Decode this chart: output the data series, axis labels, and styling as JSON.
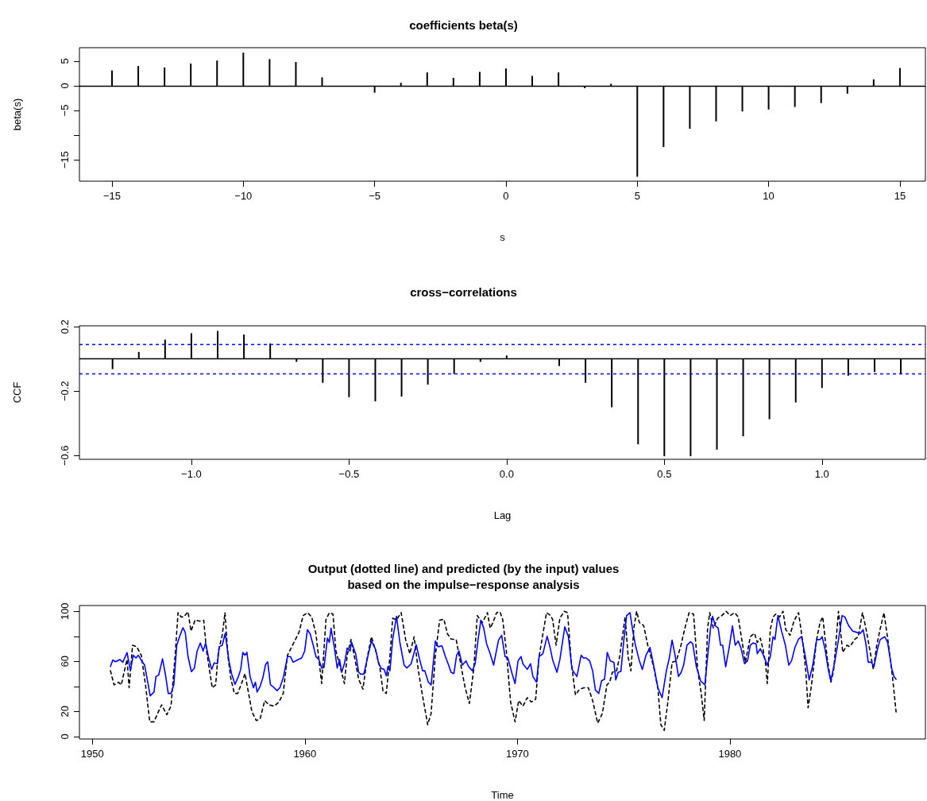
{
  "chart_data": [
    {
      "type": "bar",
      "title": "coefficients beta(s)",
      "xlabel": "s",
      "ylabel": "beta(s)",
      "x": [
        -15,
        -14,
        -13,
        -12,
        -11,
        -10,
        -9,
        -8,
        -7,
        -6,
        -5,
        -4,
        -3,
        -2,
        -1,
        0,
        1,
        2,
        3,
        4,
        5,
        6,
        7,
        8,
        9,
        10,
        11,
        12,
        13,
        14,
        15
      ],
      "series": [
        {
          "color": "#000000",
          "values": [
            3.1,
            4.0,
            3.7,
            4.5,
            5.1,
            6.7,
            5.4,
            4.8,
            1.7,
            null,
            -1.4,
            0.6,
            2.7,
            1.6,
            2.8,
            3.5,
            2.0,
            2.7,
            -0.5,
            0.4,
            -18.4,
            -12.4,
            -8.7,
            -7.2,
            -5.2,
            -4.8,
            -4.3,
            -3.5,
            -1.6,
            1.3,
            3.6
          ]
        }
      ],
      "xlim": [
        -16.24,
        15.97
      ],
      "xticks": [
        -15,
        -10,
        -5,
        0,
        5,
        10,
        15
      ],
      "ylim": [
        -19.3,
        7.7
      ],
      "yticks": [
        -15,
        {
          "value": -10,
          "label": null
        },
        -5,
        0,
        5
      ],
      "ref_lines": [
        {
          "axis": "y",
          "value": 0,
          "color": "#000000",
          "line_style": "solid"
        }
      ]
    },
    {
      "type": "bar",
      "title": "cross−correlations",
      "xlabel": "Lag",
      "ylabel": "CCF",
      "x": [
        -1.25,
        -1.1667,
        -1.0833,
        -1,
        -0.9167,
        -0.8333,
        -0.75,
        -0.6667,
        -0.5833,
        -0.5,
        -0.4167,
        -0.3333,
        -0.25,
        -0.1667,
        -0.0833,
        0,
        0.0833,
        0.1667,
        0.25,
        0.3333,
        0.4167,
        0.5,
        0.5833,
        0.6667,
        0.75,
        0.8333,
        0.9167,
        1,
        1.0833,
        1.1667,
        1.25
      ],
      "series": [
        {
          "color": "#000000",
          "values": [
            -0.063,
            0.044,
            0.12,
            0.16,
            0.174,
            0.152,
            0.096,
            -0.018,
            -0.148,
            -0.237,
            -0.263,
            -0.233,
            -0.159,
            -0.093,
            -0.018,
            0.022,
            null,
            -0.044,
            -0.148,
            -0.3,
            -0.53,
            -0.604,
            -0.604,
            -0.563,
            -0.48,
            -0.374,
            -0.27,
            -0.18,
            -0.104,
            -0.081,
            -0.093
          ]
        }
      ],
      "xlim": [
        -1.355,
        1.328
      ],
      "xticks": [
        {
          "value": -1,
          "label": "−1.0"
        },
        {
          "value": -0.5,
          "label": "−0.5"
        },
        {
          "value": 0,
          "label": "0.0"
        },
        {
          "value": 0.5,
          "label": "0.5"
        },
        {
          "value": 1,
          "label": "1.0"
        }
      ],
      "ylim": [
        -0.623,
        0.206
      ],
      "yticks": [
        {
          "value": -0.6,
          "label": "−0.6"
        },
        {
          "value": -0.2,
          "label": "−0.2"
        },
        {
          "value": 0.2,
          "label": "0.2"
        }
      ],
      "ref_lines": [
        {
          "axis": "y",
          "value": 0,
          "color": "#000000",
          "line_style": "solid"
        },
        {
          "axis": "y",
          "value": 0.093,
          "color": "#0000ff",
          "line_style": "dashed"
        },
        {
          "axis": "y",
          "value": -0.093,
          "color": "#0000ff",
          "line_style": "dashed"
        }
      ]
    },
    {
      "type": "line",
      "title": "Output (dotted line) and predicted (by the input) values\nbased on the impulse−response analysis",
      "xlabel": "Time",
      "marker": "none",
      "series": [
        {
          "color": "#000000",
          "line_style": "dashed",
          "x": [
            1950.85,
            1951.02,
            1951.23,
            1951.36,
            1951.49,
            1951.63,
            1951.73,
            1951.89,
            1952.09,
            1952.3,
            1952.5,
            1952.7,
            1952.9,
            1953.1,
            1953.26,
            1953.5,
            1953.7,
            1953.9,
            1954.03,
            1954.17,
            1954.3,
            1954.5,
            1954.64,
            1954.84,
            1955.04,
            1955.24,
            1955.37,
            1955.64,
            1955.8,
            1955.93,
            1956.11,
            1956.24,
            1956.38,
            1956.51,
            1956.68,
            1956.84,
            1957.04,
            1957.18,
            1957.35,
            1957.51,
            1957.71,
            1957.89,
            1958.11,
            1958.31,
            1958.55,
            1958.78,
            1958.98,
            1959.18,
            1959.52,
            1959.72,
            1959.92,
            1960.12,
            1960.32,
            1960.52,
            1960.79,
            1960.99,
            1961.15,
            1961.32,
            1961.46,
            1961.66,
            1961.86,
            1961.99,
            1962.17,
            1962.33,
            1962.53,
            1962.73,
            1962.93,
            1963.13,
            1963.37,
            1963.53,
            1963.67,
            1963.83,
            1964.0,
            1964.13,
            1964.31,
            1964.53,
            1964.74,
            1964.94,
            1965.14,
            1965.34,
            1965.54,
            1965.78,
            1965.94,
            1966.14,
            1966.34,
            1966.54,
            1966.71,
            1966.88,
            1967.12,
            1967.34,
            1967.54,
            1967.74,
            1967.95,
            1968.11,
            1968.35,
            1968.59,
            1968.72,
            1968.85,
            1969.02,
            1969.18,
            1969.31,
            1969.48,
            1969.68,
            1969.89,
            1970.06,
            1970.26,
            1970.46,
            1970.66,
            1970.86,
            1971.02,
            1971.2,
            1971.37,
            1971.56,
            1971.66,
            1971.82,
            1972.0,
            1972.2,
            1972.36,
            1972.53,
            1972.73,
            1972.93,
            1973.14,
            1973.34,
            1973.54,
            1973.78,
            1974.0,
            1974.21,
            1974.34,
            1974.47,
            1974.67,
            1974.81,
            1974.94,
            1975.07,
            1975.21,
            1975.34,
            1975.48,
            1975.61,
            1975.74,
            1975.94,
            1976.15,
            1976.41,
            1976.61,
            1976.75,
            1976.91,
            1977.08,
            1977.28,
            1977.48,
            1977.68,
            1977.88,
            1978.08,
            1978.29,
            1978.49,
            1978.65,
            1978.79,
            1978.95,
            1979.05,
            1979.22,
            1979.42,
            1979.62,
            1979.82,
            1980.02,
            1980.22,
            1980.39,
            1980.56,
            1980.73,
            1980.96,
            1981.16,
            1981.29,
            1981.43,
            1981.56,
            1981.67,
            1981.76,
            1981.9,
            1982.03,
            1982.16,
            1982.34,
            1982.5,
            1982.63,
            1982.83,
            1983.01,
            1983.23,
            1983.43,
            1983.57,
            1983.68,
            1983.84,
            1984.08,
            1984.24,
            1984.37,
            1984.57,
            1984.75,
            1984.88,
            1985.11,
            1985.31,
            1985.51,
            1985.64,
            1985.87,
            1986.04,
            1986.24,
            1986.4,
            1986.58,
            1986.75,
            1986.91,
            1987.05,
            1987.25,
            1987.45,
            1987.65,
            1987.82
          ],
          "values": [
            52.5,
            41.2,
            43.4,
            41.2,
            51.3,
            61.5,
            38.9,
            72.9,
            71.7,
            64.9,
            41.2,
            11.7,
            11.7,
            19.6,
            25.3,
            17.4,
            24.2,
            66.1,
            98.9,
            95.5,
            95.5,
            99.6,
            84.2,
            93.2,
            92.1,
            92.8,
            68.3,
            38.9,
            41.2,
            68.3,
            80.8,
            98.9,
            63.8,
            46.8,
            34.4,
            34.4,
            43.4,
            50.2,
            34.4,
            19.6,
            12.8,
            14.0,
            28.7,
            25.3,
            24.2,
            27.6,
            34.4,
            64.9,
            76.3,
            83.1,
            96.6,
            98.9,
            95.5,
            81.9,
            42.3,
            93.2,
            98.9,
            97.8,
            68.3,
            55.9,
            42.3,
            64.9,
            77.4,
            63.8,
            45.7,
            37.8,
            62.7,
            79.7,
            66.1,
            54.7,
            36.6,
            34.4,
            63.8,
            94.4,
            93.2,
            98.9,
            77.4,
            66.1,
            79.7,
            52.5,
            32.1,
            9.4,
            18.5,
            64.9,
            92.8,
            93.7,
            81.9,
            77.8,
            77.4,
            57.0,
            38.9,
            26.4,
            54.7,
            96.6,
            91.0,
            98.9,
            86.5,
            91.0,
            98.9,
            99.6,
            93.2,
            68.3,
            27.6,
            11.7,
            28.7,
            24.2,
            31.0,
            27.6,
            29.8,
            63.8,
            81.9,
            98.9,
            96.6,
            93.2,
            72.9,
            94.4,
            100.0,
            98.9,
            60.4,
            33.2,
            37.8,
            38.9,
            38.9,
            28.7,
            10.6,
            18.5,
            41.2,
            43.4,
            51.3,
            52.5,
            63.8,
            79.7,
            95.5,
            63.8,
            52.5,
            86.5,
            100.0,
            91.0,
            88.7,
            71.7,
            55.9,
            38.9,
            9.4,
            4.9,
            27.6,
            59.3,
            60.4,
            71.7,
            86.5,
            98.9,
            97.8,
            52.5,
            34.4,
            12.8,
            86.5,
            98.9,
            86.5,
            94.4,
            96.6,
            100.0,
            96.6,
            98.9,
            95.5,
            77.4,
            59.3,
            79.7,
            82.4,
            75.1,
            78.5,
            69.5,
            59.3,
            42.3,
            85.3,
            95.5,
            97.8,
            95.5,
            100.0,
            85.3,
            80.8,
            92.1,
            98.9,
            75.1,
            52.5,
            23.0,
            41.2,
            77.4,
            91.0,
            95.5,
            63.8,
            43.4,
            52.5,
            100.0,
            67.2,
            72.9,
            71.7,
            77.4,
            79.7,
            98.9,
            86.5,
            69.5,
            53.6,
            72.9,
            84.2,
            98.9,
            75.1,
            47.9,
            19.6
          ]
        },
        {
          "color": "#0000ff",
          "line_style": "solid",
          "x": [
            1950.85,
            1950.96,
            1951.09,
            1951.29,
            1951.43,
            1951.63,
            1951.79,
            1951.92,
            1952.05,
            1952.16,
            1952.32,
            1952.46,
            1952.72,
            1952.9,
            1952.99,
            1953.12,
            1953.3,
            1953.43,
            1953.57,
            1953.7,
            1953.83,
            1953.97,
            1954.1,
            1954.26,
            1954.37,
            1954.5,
            1954.66,
            1954.8,
            1954.93,
            1955.08,
            1955.21,
            1955.33,
            1955.47,
            1955.61,
            1955.73,
            1955.88,
            1955.97,
            1956.11,
            1956.25,
            1956.42,
            1956.55,
            1956.71,
            1956.87,
            1956.98,
            1957.08,
            1957.18,
            1957.27,
            1957.42,
            1957.58,
            1957.67,
            1957.75,
            1957.89,
            1958.02,
            1958.15,
            1958.25,
            1958.38,
            1958.49,
            1958.69,
            1958.82,
            1958.98,
            1959.18,
            1959.32,
            1959.45,
            1959.65,
            1959.85,
            1959.99,
            1960.12,
            1960.25,
            1960.39,
            1960.52,
            1960.66,
            1960.79,
            1960.9,
            1961.06,
            1961.15,
            1961.23,
            1961.39,
            1961.52,
            1961.63,
            1961.73,
            1961.86,
            1961.99,
            1962.13,
            1962.19,
            1962.39,
            1962.53,
            1962.62,
            1962.77,
            1962.93,
            1963.13,
            1963.33,
            1963.46,
            1963.6,
            1963.73,
            1963.83,
            1963.91,
            1964.0,
            1964.13,
            1964.31,
            1964.47,
            1964.67,
            1964.8,
            1965.0,
            1965.24,
            1965.4,
            1965.54,
            1965.64,
            1965.81,
            1965.94,
            1966.14,
            1966.27,
            1966.45,
            1966.61,
            1966.74,
            1966.88,
            1967.01,
            1967.14,
            1967.25,
            1967.41,
            1967.58,
            1967.7,
            1967.88,
            1968.01,
            1968.15,
            1968.28,
            1968.41,
            1968.55,
            1968.72,
            1968.88,
            1969.11,
            1969.26,
            1969.42,
            1969.55,
            1969.75,
            1969.89,
            1970.03,
            1970.17,
            1970.26,
            1970.46,
            1970.62,
            1970.73,
            1970.9,
            1971.02,
            1971.2,
            1971.4,
            1971.53,
            1971.66,
            1971.86,
            1972.0,
            1972.23,
            1972.4,
            1972.57,
            1972.8,
            1973.0,
            1973.11,
            1973.24,
            1973.4,
            1973.54,
            1973.67,
            1973.83,
            1973.96,
            1974.1,
            1974.23,
            1974.37,
            1974.54,
            1974.63,
            1974.74,
            1974.87,
            1975.01,
            1975.14,
            1975.3,
            1975.41,
            1975.54,
            1975.74,
            1975.88,
            1976.05,
            1976.24,
            1976.41,
            1976.61,
            1976.81,
            1977.01,
            1977.15,
            1977.28,
            1977.42,
            1977.58,
            1977.71,
            1977.82,
            1977.98,
            1978.15,
            1978.25,
            1978.42,
            1978.62,
            1978.82,
            1978.95,
            1979.09,
            1979.18,
            1979.32,
            1979.45,
            1979.56,
            1979.66,
            1979.8,
            1979.96,
            1980.12,
            1980.25,
            1980.39,
            1980.52,
            1980.69,
            1980.83,
            1980.96,
            1981.09,
            1981.23,
            1981.29,
            1981.43,
            1981.59,
            1981.76,
            1981.9,
            1982.03,
            1982.12,
            1982.26,
            1982.43,
            1982.61,
            1982.77,
            1982.9,
            1983.06,
            1983.23,
            1983.37,
            1983.54,
            1983.73,
            1983.9,
            1984.08,
            1984.24,
            1984.34,
            1984.48,
            1984.64,
            1984.75,
            1984.93,
            1985.11,
            1985.28,
            1985.41,
            1985.58,
            1985.78,
            1985.98,
            1986.14,
            1986.27,
            1986.4,
            1986.51,
            1986.65,
            1986.78,
            1986.94,
            1987.07,
            1987.29,
            1987.42,
            1987.61,
            1987.72,
            1987.82
          ],
          "values": [
            55.9,
            61.1,
            59.7,
            61.5,
            59.3,
            67.0,
            52.5,
            64.9,
            62.7,
            64.9,
            60.4,
            57.0,
            32.5,
            35.5,
            47.9,
            49.1,
            62.0,
            50.2,
            34.4,
            34.4,
            41.2,
            72.9,
            79.7,
            86.9,
            83.1,
            63.8,
            51.8,
            54.7,
            68.3,
            74.7,
            68.3,
            74.7,
            62.7,
            53.6,
            58.8,
            58.1,
            71.7,
            72.9,
            82.4,
            61.1,
            50.2,
            41.6,
            47.9,
            53.6,
            67.2,
            64.9,
            67.2,
            47.9,
            38.9,
            43.4,
            35.5,
            40.0,
            46.8,
            57.5,
            59.7,
            41.2,
            40.0,
            36.6,
            38.9,
            46.8,
            63.8,
            63.8,
            59.3,
            61.1,
            62.7,
            68.3,
            85.3,
            81.9,
            72.9,
            63.8,
            61.5,
            54.7,
            55.2,
            78.5,
            75.1,
            86.5,
            70.6,
            54.7,
            61.5,
            51.3,
            58.1,
            70.6,
            68.3,
            75.6,
            66.1,
            51.3,
            49.8,
            49.8,
            61.5,
            76.3,
            69.5,
            58.8,
            54.3,
            53.6,
            48.4,
            55.9,
            52.5,
            77.4,
            96.0,
            75.1,
            57.0,
            54.7,
            58.1,
            73.3,
            61.5,
            52.5,
            52.5,
            43.4,
            41.2,
            76.3,
            71.7,
            72.4,
            63.8,
            58.1,
            51.3,
            50.2,
            64.9,
            68.3,
            57.0,
            60.4,
            55.9,
            52.5,
            58.1,
            77.4,
            92.8,
            86.9,
            74.0,
            66.1,
            57.0,
            76.9,
            80.8,
            63.8,
            62.7,
            50.2,
            42.3,
            60.4,
            63.8,
            58.1,
            53.6,
            58.1,
            47.9,
            43.4,
            63.8,
            66.1,
            80.1,
            71.7,
            61.1,
            51.3,
            61.5,
            87.6,
            79.7,
            53.6,
            47.9,
            64.9,
            62.7,
            62.7,
            60.4,
            52.5,
            37.1,
            34.4,
            44.5,
            45.7,
            67.2,
            60.4,
            59.3,
            45.2,
            51.3,
            52.0,
            77.4,
            96.6,
            98.9,
            86.5,
            74.0,
            60.4,
            53.6,
            64.9,
            71.1,
            57.0,
            38.9,
            31.0,
            52.5,
            62.7,
            76.9,
            64.9,
            47.9,
            51.3,
            57.0,
            72.9,
            75.6,
            74.0,
            55.9,
            44.5,
            41.2,
            63.8,
            86.5,
            96.0,
            88.3,
            86.5,
            72.9,
            72.9,
            55.6,
            70.6,
            88.3,
            72.9,
            76.3,
            70.6,
            58.1,
            60.4,
            72.9,
            74.7,
            74.0,
            66.1,
            70.1,
            64.3,
            57.0,
            63.8,
            79.7,
            77.4,
            96.6,
            84.2,
            72.9,
            57.0,
            60.4,
            71.1,
            77.8,
            79.7,
            64.9,
            45.2,
            57.0,
            77.4,
            77.4,
            79.7,
            69.5,
            52.5,
            44.5,
            59.3,
            77.4,
            96.6,
            95.5,
            88.7,
            84.2,
            83.1,
            82.4,
            85.3,
            74.0,
            59.3,
            59.3,
            55.9,
            69.5,
            77.4,
            79.7,
            75.1,
            54.7,
            47.9,
            45.7
          ]
        }
      ],
      "xlim": [
        1949.39,
        1989.2
      ],
      "xticks": [
        1950,
        1960,
        1970,
        1980
      ],
      "ylim": [
        -2,
        104.6
      ],
      "yticks": [
        0,
        20,
        {
          "value": 40,
          "label": null
        },
        60,
        {
          "value": 80,
          "label": null
        },
        100
      ]
    }
  ]
}
